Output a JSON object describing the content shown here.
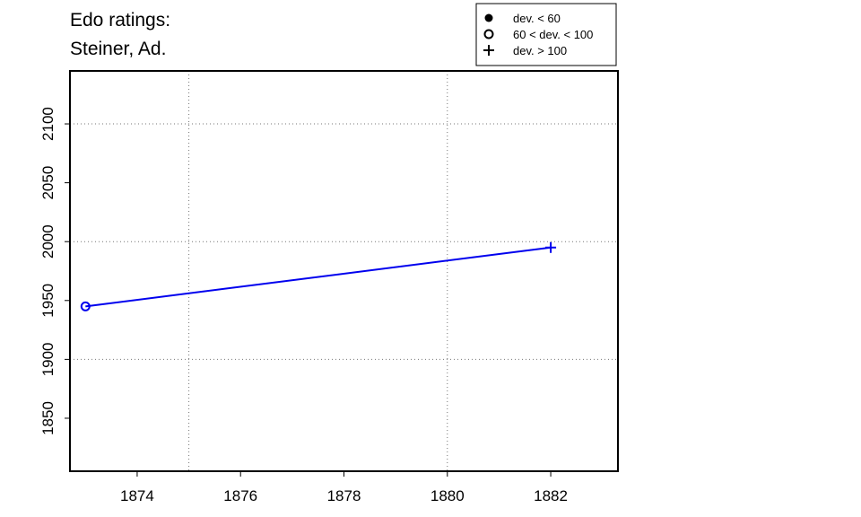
{
  "chart_data": {
    "type": "line",
    "title_lines": [
      "Edo ratings:",
      "Steiner, Ad."
    ],
    "xlabel": "",
    "ylabel": "",
    "xlim": [
      1872.7,
      1883.3
    ],
    "ylim": [
      1805,
      2145
    ],
    "x_ticks": [
      1874,
      1876,
      1878,
      1880,
      1882
    ],
    "y_ticks": [
      1850,
      1900,
      1950,
      2000,
      2050,
      2100
    ],
    "x_grid": [
      1875,
      1880
    ],
    "y_grid": [
      1900,
      2000,
      2100
    ],
    "grid": "dotted",
    "series": [
      {
        "color": "#0000ee",
        "points": [
          {
            "x": 1873,
            "y": 1945,
            "marker": "open-circle"
          },
          {
            "x": 1882,
            "y": 1995,
            "marker": "plus"
          }
        ]
      }
    ],
    "legend": {
      "placement": "top-right",
      "entries": [
        {
          "marker": "filled-circle",
          "label": "dev. < 60"
        },
        {
          "marker": "open-circle",
          "label": "60 < dev. < 100"
        },
        {
          "marker": "plus",
          "label": "dev. > 100"
        }
      ]
    }
  }
}
